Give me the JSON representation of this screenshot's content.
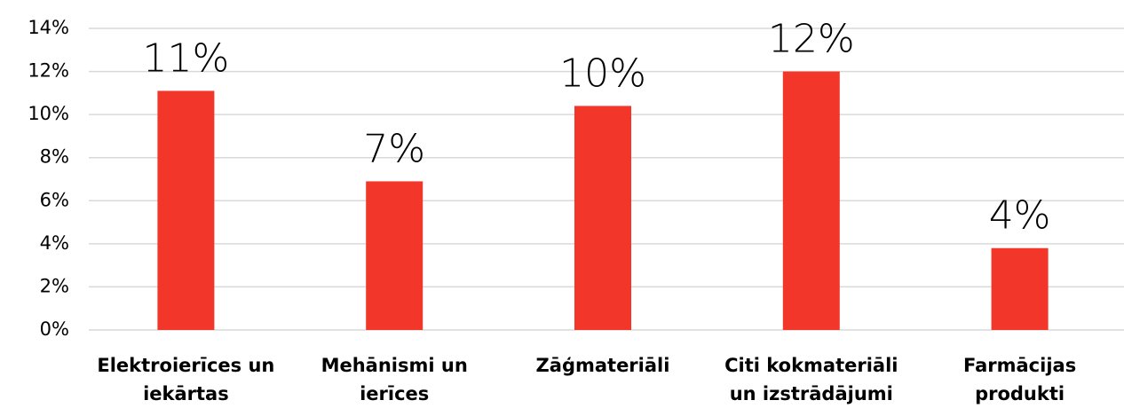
{
  "chart_data": {
    "type": "bar",
    "categories": [
      "Elektroierīces un iekārtas",
      "Mehānismi un ierīces",
      "Zāģmateriāli",
      "Citi kokmateriāli un izstrādājumi",
      "Farmācijas produkti"
    ],
    "values": [
      11.1,
      6.9,
      10.4,
      12.0,
      3.8
    ],
    "value_labels": [
      "11%",
      "7%",
      "10%",
      "12%",
      "4%"
    ],
    "color": "#f2362a",
    "ylim": [
      0,
      14
    ],
    "yticks": [
      {
        "value": 0,
        "label": "0%"
      },
      {
        "value": 2,
        "label": "2%"
      },
      {
        "value": 4,
        "label": "4%"
      },
      {
        "value": 6,
        "label": "6%"
      },
      {
        "value": 8,
        "label": "8%"
      },
      {
        "value": 10,
        "label": "10%"
      },
      {
        "value": 12,
        "label": "12%"
      },
      {
        "value": 14,
        "label": "14%"
      }
    ],
    "grid": true
  }
}
